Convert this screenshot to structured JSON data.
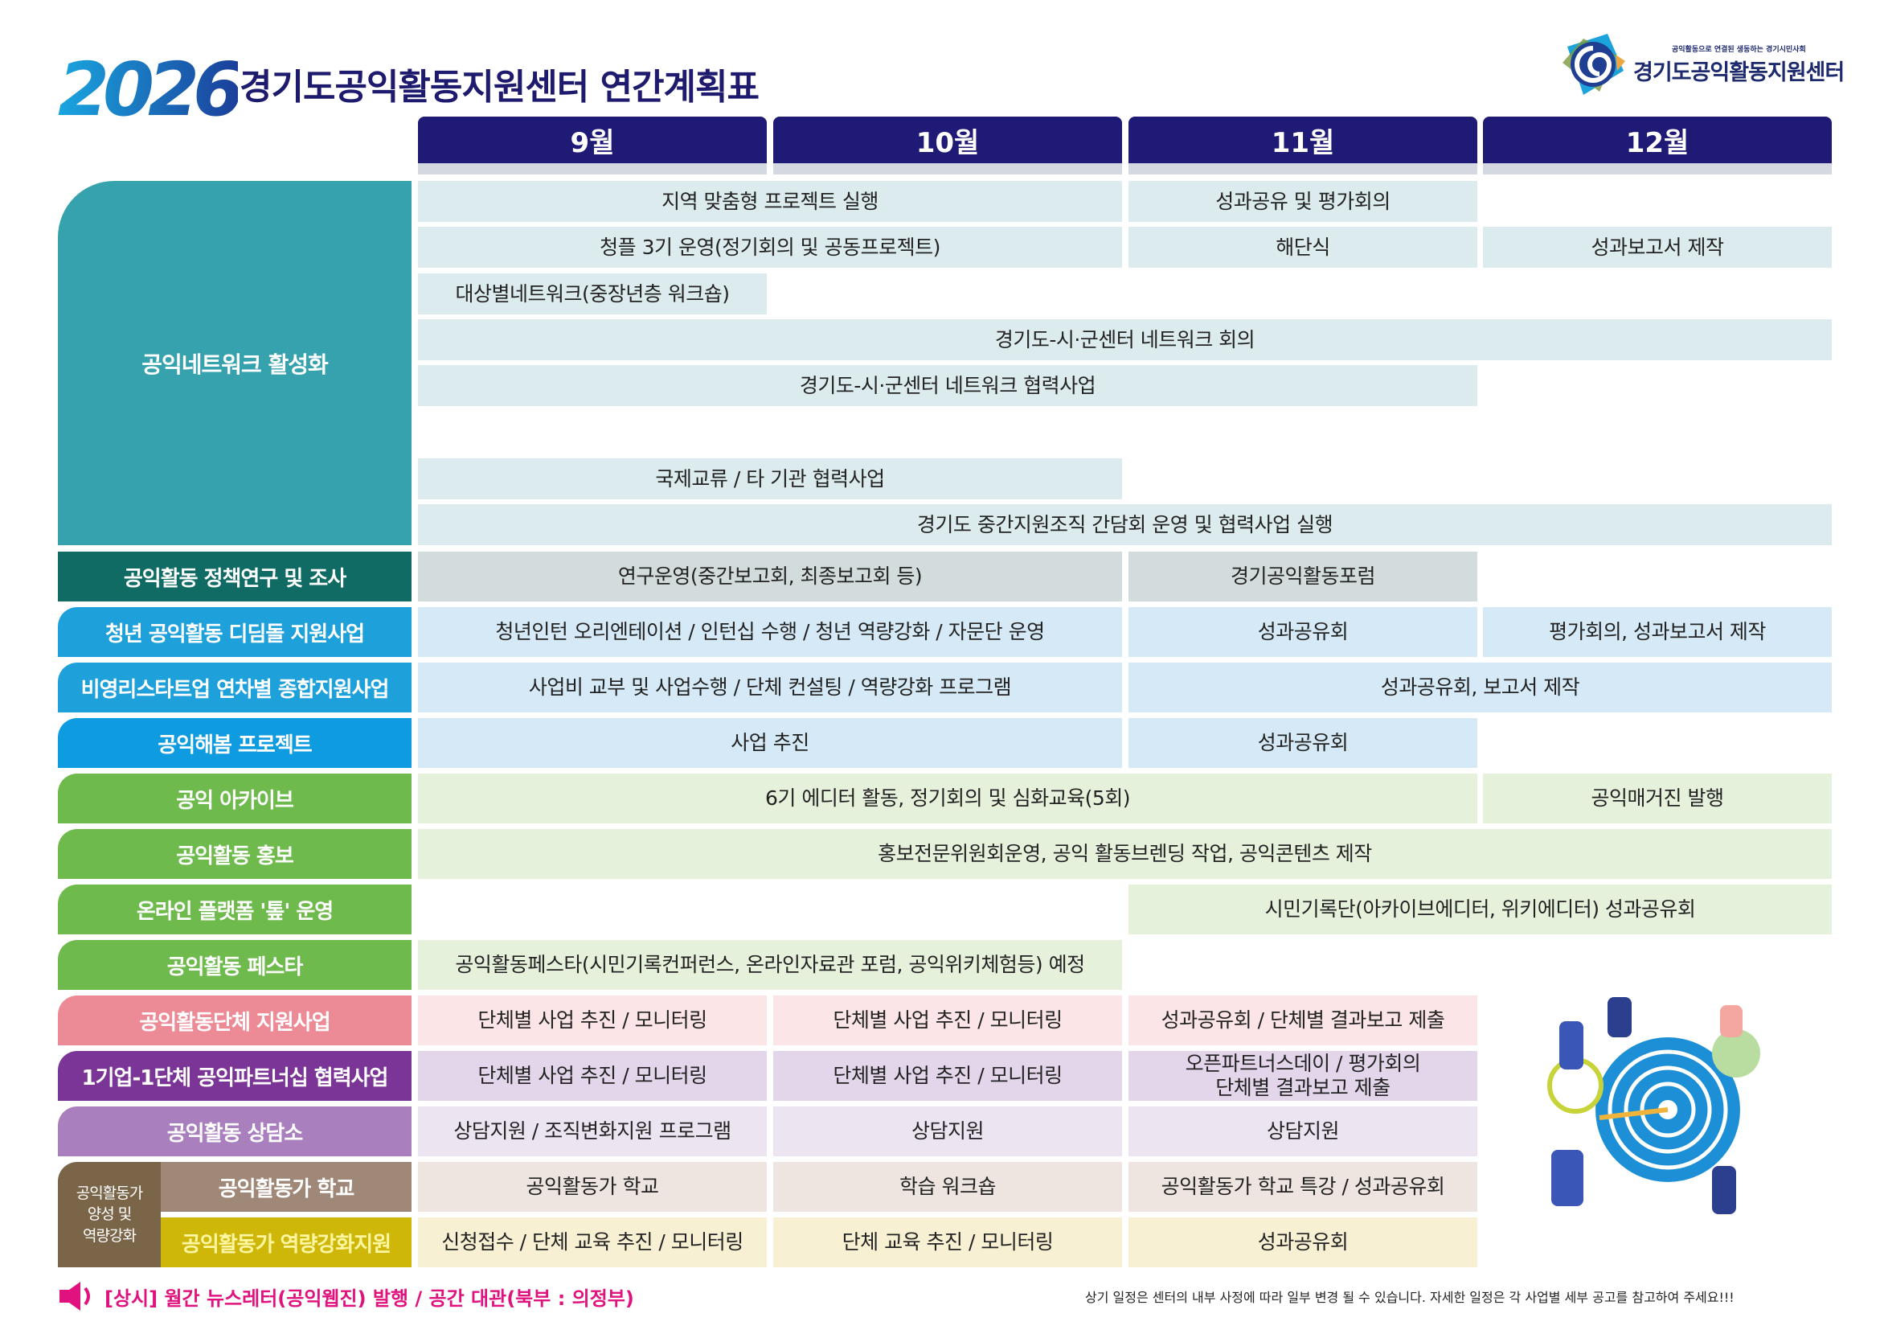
{
  "header": {
    "year": "2026",
    "title": "경기도공익활동지원센터 연간계획표",
    "logo_tagline": "공익활동으로 연결된 생동하는 경기시민사회",
    "logo_name": "경기도공익활동지원센터"
  },
  "months": [
    "9월",
    "10월",
    "11월",
    "12월"
  ],
  "network": {
    "label": "공익네트워크 활성화",
    "label_color": "#36a2ad",
    "cell_color": "#dcebed",
    "rows": [
      {
        "cells": [
          {
            "text": "지역 맞춤형 프로젝트 실행",
            "start": 0,
            "span": 2
          },
          {
            "text": "성과공유 및 평가회의",
            "start": 2,
            "span": 1
          }
        ]
      },
      {
        "cells": [
          {
            "text": "청플 3기 운영(정기회의 및 공동프로젝트)",
            "start": 0,
            "span": 2
          },
          {
            "text": "해단식",
            "start": 2,
            "span": 1
          },
          {
            "text": "성과보고서 제작",
            "start": 3,
            "span": 1
          }
        ]
      },
      {
        "cells": [
          {
            "text": "대상별네트워크(중장년층 워크숍)",
            "start": 0,
            "span": 1
          }
        ]
      },
      {
        "cells": [
          {
            "text": "경기도-시·군센터 네트워크 회의",
            "start": 0,
            "span": 4
          }
        ]
      },
      {
        "cells": [
          {
            "text": "경기도-시·군센터 네트워크 협력사업",
            "start": 0,
            "span": 3
          }
        ]
      },
      {
        "cells": []
      },
      {
        "cells": [
          {
            "text": "국제교류 / 타 기관 협력사업",
            "start": 0,
            "span": 2
          }
        ]
      },
      {
        "cells": [
          {
            "text": "경기도 중간지원조직 간담회 운영 및 협력사업 실행",
            "start": 0,
            "span": 4
          }
        ]
      }
    ]
  },
  "programs": [
    {
      "label": "공익활동 정책연구 및 조사",
      "label_color": "#0f6b63",
      "cell_color": "#d3dcdc",
      "cells": [
        {
          "text": "연구운영(중간보고회, 최종보고회 등)",
          "start": 0,
          "span": 2
        },
        {
          "text": "경기공익활동포럼",
          "start": 2,
          "span": 1
        }
      ]
    },
    {
      "label": "청년 공익활동 디딤돌 지원사업",
      "label_color": "#1ea0db",
      "cell_color": "#d5eaf6",
      "cells": [
        {
          "text": "청년인턴 오리엔테이션 / 인턴십 수행 / 청년 역량강화 / 자문단 운영",
          "start": 0,
          "span": 2
        },
        {
          "text": "성과공유회",
          "start": 2,
          "span": 1
        },
        {
          "text": "평가회의, 성과보고서 제작",
          "start": 3,
          "span": 1
        }
      ]
    },
    {
      "label": "비영리스타트업 연차별 종합지원사업",
      "label_color": "#1ea0db",
      "cell_color": "#d5eaf6",
      "cells": [
        {
          "text": "사업비 교부 및 사업수행 / 단체 컨설팅 / 역량강화 프로그램",
          "start": 0,
          "span": 2
        },
        {
          "text": "성과공유회, 보고서 제작",
          "start": 2,
          "span": 2
        }
      ]
    },
    {
      "label": "공익해봄 프로젝트",
      "label_color": "#0f9be0",
      "cell_color": "#d5eaf6",
      "cells": [
        {
          "text": "사업 추진",
          "start": 0,
          "span": 2
        },
        {
          "text": "성과공유회",
          "start": 2,
          "span": 1
        }
      ]
    },
    {
      "label": "공익 아카이브",
      "label_color": "#6fba4d",
      "cell_color": "#e6f1dc",
      "cells": [
        {
          "text": "6기 에디터 활동, 정기회의 및 심화교육(5회)",
          "start": 0,
          "span": 3
        },
        {
          "text": "공익매거진 발행",
          "start": 3,
          "span": 1
        }
      ]
    },
    {
      "label": "공익활동 홍보",
      "label_color": "#6fba4d",
      "cell_color": "#e6f1dc",
      "cells": [
        {
          "text": "홍보전문위원회운영, 공익 활동브렌딩 작업, 공익콘텐츠 제작",
          "start": 0,
          "span": 4
        }
      ]
    },
    {
      "label": "온라인 플랫폼 '톺' 운영",
      "label_color": "#6fba4d",
      "cell_color": "#e6f1dc",
      "cells": [
        {
          "text": "시민기록단(아카이브에디터, 위키에디터) 성과공유회",
          "start": 2,
          "span": 2
        }
      ]
    },
    {
      "label": "공익활동 페스타",
      "label_color": "#6fba4d",
      "cell_color": "#e6f1dc",
      "cells": [
        {
          "text": "공익활동페스타(시민기록컨퍼런스, 온라인자료관 포럼, 공익위키체험등) 예정",
          "start": 0,
          "span": 2
        }
      ]
    },
    {
      "label": "공익활동단체 지원사업",
      "label_color": "#ec8a96",
      "cell_color": "#fbe5e7",
      "cells": [
        {
          "text": "단체별 사업 추진 / 모니터링",
          "start": 0,
          "span": 1
        },
        {
          "text": "단체별 사업 추진 / 모니터링",
          "start": 1,
          "span": 1
        },
        {
          "text": "성과공유회 / 단체별 결과보고 제출",
          "start": 2,
          "span": 1
        }
      ]
    },
    {
      "label": "1기업-1단체 공익파트너십 협력사업",
      "label_color": "#7a3596",
      "cell_color": "#e3d6ea",
      "cells": [
        {
          "text": "단체별 사업 추진 / 모니터링",
          "start": 0,
          "span": 1
        },
        {
          "text": "단체별 사업 추진 / 모니터링",
          "start": 1,
          "span": 1
        },
        {
          "text": "오픈파트너스데이 / 평가회의\n단체별 결과보고 제출",
          "start": 2,
          "span": 1
        }
      ]
    },
    {
      "label": "공익활동 상담소",
      "label_color": "#a97fbd",
      "cell_color": "#ede4f2",
      "cells": [
        {
          "text": "상담지원 / 조직변화지원 프로그램",
          "start": 0,
          "span": 1
        },
        {
          "text": "상담지원",
          "start": 1,
          "span": 1
        },
        {
          "text": "상담지원",
          "start": 2,
          "span": 1
        }
      ]
    },
    {
      "label": "공익활동가 학교",
      "label_color": "#a08878",
      "cell_color": "#efe5e0",
      "sub": true,
      "cells": [
        {
          "text": "공익활동가 학교",
          "start": 0,
          "span": 1
        },
        {
          "text": "학습 워크숍",
          "start": 1,
          "span": 1
        },
        {
          "text": "공익활동가 학교 특강 / 성과공유회",
          "start": 2,
          "span": 1
        }
      ]
    },
    {
      "label": "공익활동가 역량강화지원",
      "label_color": "#cfb70a",
      "label_text_color": "#fff6a0",
      "cell_color": "#f7f0d3",
      "sub": true,
      "cells": [
        {
          "text": "신청접수 / 단체 교육 추진 / 모니터링",
          "start": 0,
          "span": 1
        },
        {
          "text": "단체 교육 추진 / 모니터링",
          "start": 1,
          "span": 1
        },
        {
          "text": "성과공유회",
          "start": 2,
          "span": 1
        }
      ]
    }
  ],
  "group_label": "공익활동가\n양성 및\n역량강화",
  "group_color": "#7a6548",
  "footer": {
    "notice": "[상시] 월간 뉴스레터(공익웹진) 발행 / 공간 대관(북부 : 의정부)",
    "notice_icon": "speaker-icon",
    "disclaimer": "상기 일정은 센터의 내부 사정에 따라 일부 변경 될 수 있습니다. 자세한 일정은 각 사업별 세부 공고를 참고하여 주세요!!!"
  }
}
